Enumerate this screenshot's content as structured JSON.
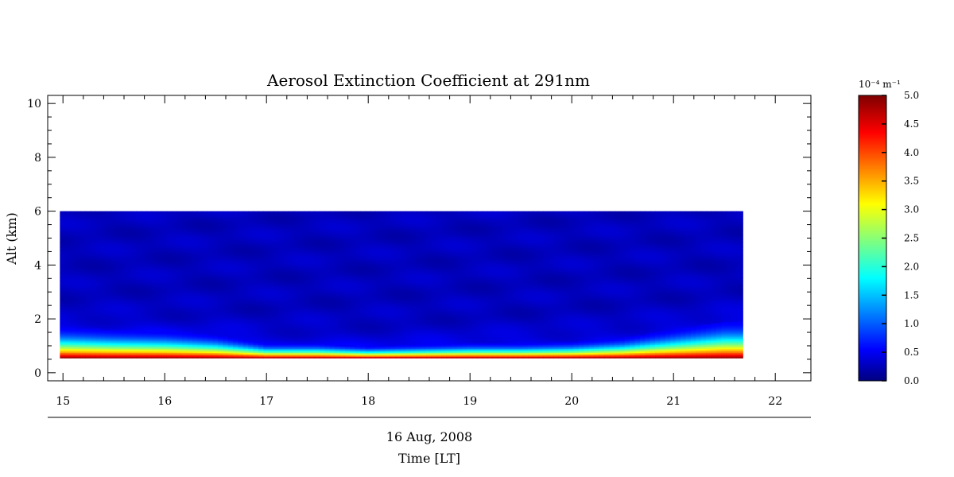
{
  "chart_data": {
    "type": "heatmap",
    "title": "Aerosol Extinction Coefficient at 291nm",
    "ylabel": "Alt (km)",
    "date_label": "16 Aug, 2008",
    "xlabel": "Time [LT]",
    "xlim": [
      14.85,
      22.35
    ],
    "ylim": [
      -0.3,
      10.3
    ],
    "x_ticks": [
      15,
      16,
      17,
      18,
      19,
      20,
      21,
      22
    ],
    "y_ticks": [
      0,
      2,
      4,
      6,
      8,
      10
    ],
    "data_extent": {
      "x": [
        14.97,
        21.68
      ],
      "y": [
        0.55,
        6.0
      ]
    },
    "colorbar": {
      "unit_label": "10⁻⁴ m⁻¹",
      "range": [
        0.0,
        5.0
      ],
      "ticks": [
        "0.0",
        "0.5",
        "1.0",
        "1.5",
        "2.0",
        "2.5",
        "3.0",
        "3.5",
        "4.0",
        "4.5",
        "5.0"
      ],
      "colormap": "jet"
    },
    "time_hours": [
      15.0,
      15.5,
      16.0,
      16.5,
      17.0,
      17.5,
      18.0,
      18.5,
      19.0,
      19.5,
      20.0,
      20.5,
      21.0,
      21.5
    ],
    "boundary_layer_top_km": [
      1.7,
      1.6,
      1.55,
      1.4,
      1.1,
      1.1,
      1.0,
      1.05,
      1.1,
      1.1,
      1.15,
      1.3,
      1.6,
      1.9
    ],
    "surface_extinction": 5.0,
    "free_troposphere_extinction": 0.3
  }
}
